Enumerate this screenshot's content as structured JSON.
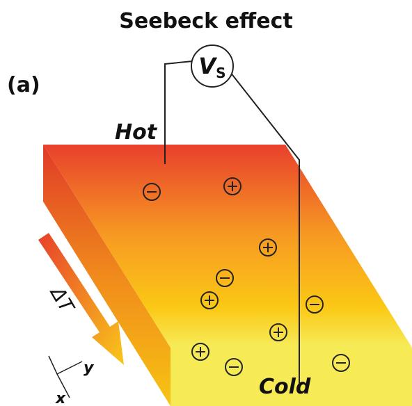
{
  "title": "Seebeck effect",
  "panel_label": "(a)",
  "voltage": {
    "symbol": "V",
    "subscript": "S"
  },
  "hot": "Hot",
  "cold": "Cold",
  "gradient_label": "ΔT",
  "axes": {
    "y": "y",
    "x": "x"
  }
}
